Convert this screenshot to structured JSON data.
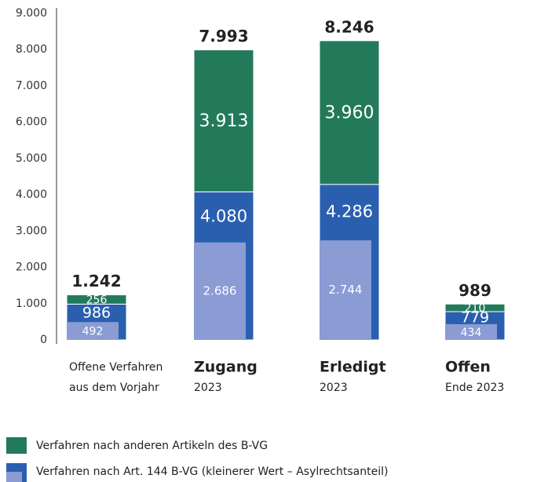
{
  "chart_data": {
    "type": "stacked_bar",
    "categories": [
      "Offene Verfahren",
      "Zugang",
      "Erledigt",
      "Offen"
    ],
    "category_sublabels": [
      "aus dem Vorjahr",
      "2023",
      "2023",
      "Ende 2023"
    ],
    "category_bold": [
      false,
      true,
      true,
      true
    ],
    "series": [
      {
        "name": "Verfahren nach anderen Artikeln des B-VG",
        "color": "#237a5a",
        "values": [
          256,
          3913,
          3960,
          210
        ],
        "value_labels": [
          "256",
          "3.913",
          "3.960",
          "210"
        ]
      },
      {
        "name": "Verfahren nach Art. 144 B-VG (kleinerer Wert – Asylrechtsanteil)",
        "color": "#2a5fb0",
        "values": [
          986,
          4080,
          4286,
          779
        ],
        "value_labels": [
          "986",
          "4.080",
          "4.286",
          "779"
        ],
        "part": {
          "color": "#8b9bd4",
          "values": [
            492,
            2686,
            2744,
            434
          ],
          "value_labels": [
            "492",
            "2.686",
            "2.744",
            "434"
          ]
        }
      }
    ],
    "totals": {
      "values": [
        1242,
        7993,
        8246,
        989
      ],
      "value_labels": [
        "1.242",
        "7.993",
        "8.246",
        "989"
      ]
    },
    "ylim": [
      0,
      9000
    ],
    "yticks": [
      0,
      {
        "value": 1000,
        "label": "1.000"
      },
      {
        "value": 2000,
        "label": "2.000"
      },
      {
        "value": 3000,
        "label": "3.000"
      },
      {
        "value": 4000,
        "label": "4.000"
      },
      {
        "value": 5000,
        "label": "5.000"
      },
      {
        "value": 6000,
        "label": "6.000"
      },
      {
        "value": 7000,
        "label": "7.000"
      },
      {
        "value": 8000,
        "label": "8.000"
      },
      {
        "value": 9000,
        "label": "9.000"
      }
    ],
    "grid": false
  }
}
